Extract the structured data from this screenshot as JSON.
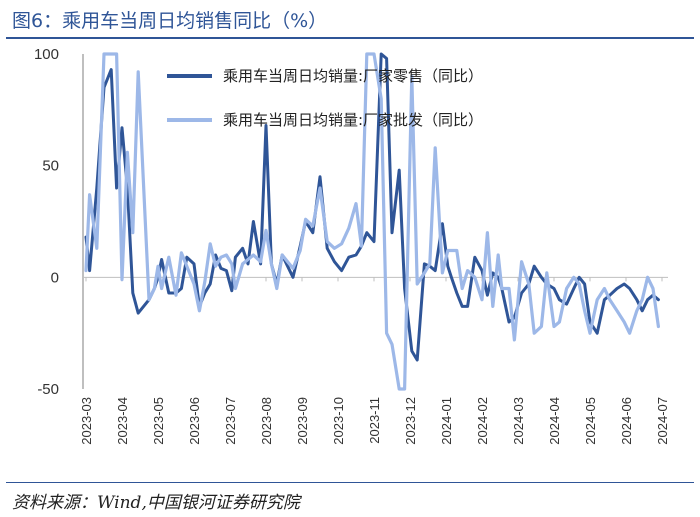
{
  "header": {
    "title": "图6：乘用车当周日均销售同比（%）"
  },
  "footer": {
    "source": "资料来源：Wind,中国银河证券研究院"
  },
  "chart_data": {
    "type": "line",
    "title": "图6：乘用车当周日均销售同比（%）",
    "xlabel": "",
    "ylabel": "",
    "ylim": [
      -50,
      100
    ],
    "yticks": [
      100,
      50,
      0,
      -50
    ],
    "xticks": [
      "2023-03",
      "2023-04",
      "2023-05",
      "2023-06",
      "2023-07",
      "2023-08",
      "2023-09",
      "2023-10",
      "2023-11",
      "2023-12",
      "2024-01",
      "2024-02",
      "2024-03",
      "2024-04",
      "2024-05",
      "2024-06",
      "2024-07"
    ],
    "grid": false,
    "legend": "top-left",
    "series": [
      {
        "name": "乘用车当周日均销量:厂家零售（同比）",
        "color": "#2f5597",
        "x": [
          0,
          0.1,
          0.3,
          0.5,
          0.7,
          0.85,
          1.0,
          1.15,
          1.3,
          1.45,
          1.75,
          1.9,
          2.0,
          2.1,
          2.3,
          2.5,
          2.65,
          2.8,
          3.0,
          3.15,
          3.3,
          3.45,
          3.6,
          3.75,
          3.9,
          4.05,
          4.15,
          4.35,
          4.5,
          4.65,
          4.85,
          5.0,
          5.15,
          5.3,
          5.45,
          5.6,
          5.75,
          5.95,
          6.1,
          6.3,
          6.5,
          6.7,
          6.9,
          7.1,
          7.3,
          7.5,
          7.65,
          7.8,
          8.0,
          8.2,
          8.35,
          8.5,
          8.7,
          8.85,
          9.05,
          9.2,
          9.4,
          9.55,
          9.7,
          9.9,
          10.05,
          10.15,
          10.3,
          10.45,
          10.6,
          10.8,
          11.0,
          11.15,
          11.3,
          11.45,
          11.55,
          11.75,
          11.9,
          12.1,
          12.3,
          12.45,
          12.65,
          12.8,
          13.0,
          13.15,
          13.35,
          13.55,
          13.7,
          13.85,
          14.0,
          14.2,
          14.4,
          14.55,
          14.75,
          14.95,
          15.1,
          15.3,
          15.45,
          15.6,
          15.75,
          15.9
        ],
        "y": [
          18,
          3,
          40,
          85,
          93,
          40,
          67,
          40,
          -7,
          -16,
          -10,
          -5,
          0,
          8,
          -7,
          -7,
          -5,
          9,
          6,
          -13,
          -7,
          -3,
          10,
          4,
          3,
          -6,
          9,
          13,
          6,
          25,
          6,
          68,
          6,
          -3,
          10,
          5,
          0,
          14,
          25,
          20,
          45,
          13,
          7,
          3,
          9,
          10,
          14,
          20,
          16,
          100,
          98,
          20,
          48,
          -5,
          -33,
          -37,
          6,
          5,
          3,
          24,
          5,
          0,
          -7,
          -13,
          -13,
          9,
          3,
          -8,
          2,
          0,
          -5,
          -20,
          -18,
          -7,
          -3,
          5,
          0,
          -3,
          -5,
          -10,
          -12,
          -5,
          0,
          -3,
          -20,
          -25,
          -10,
          -8,
          -5,
          -3,
          -5,
          -10,
          -15,
          -10,
          -8,
          -10
        ],
        "note_x": "x in month index units (0 = 2023-03 tick)"
      },
      {
        "name": "乘用车当周日均销量:厂家批发（同比）",
        "color": "#9db8e8",
        "x": [
          0,
          0.1,
          0.3,
          0.5,
          0.7,
          0.85,
          1.0,
          1.15,
          1.3,
          1.45,
          1.75,
          1.9,
          2.0,
          2.1,
          2.3,
          2.5,
          2.65,
          2.8,
          3.0,
          3.15,
          3.3,
          3.45,
          3.6,
          3.75,
          3.9,
          4.05,
          4.15,
          4.35,
          4.5,
          4.65,
          4.85,
          5.0,
          5.15,
          5.3,
          5.45,
          5.6,
          5.75,
          5.95,
          6.1,
          6.3,
          6.5,
          6.7,
          6.9,
          7.1,
          7.3,
          7.5,
          7.65,
          7.8,
          8.0,
          8.2,
          8.35,
          8.5,
          8.7,
          8.85,
          9.05,
          9.2,
          9.4,
          9.55,
          9.7,
          9.9,
          10.05,
          10.15,
          10.3,
          10.45,
          10.6,
          10.8,
          11.0,
          11.15,
          11.3,
          11.45,
          11.55,
          11.75,
          11.9,
          12.1,
          12.3,
          12.45,
          12.65,
          12.8,
          13.0,
          13.15,
          13.35,
          13.55,
          13.7,
          13.85,
          14.0,
          14.2,
          14.4,
          14.55,
          14.75,
          14.95,
          15.1,
          15.3,
          15.45,
          15.6,
          15.75,
          15.9
        ],
        "y": [
          3,
          37,
          13,
          100,
          100,
          100,
          -1,
          56,
          20,
          92,
          -10,
          -5,
          5,
          -5,
          9,
          -8,
          11,
          5,
          -3,
          -15,
          -2,
          15,
          5,
          9,
          10,
          6,
          -5,
          6,
          8,
          10,
          7,
          21,
          6,
          -5,
          10,
          7,
          4,
          12,
          26,
          23,
          40,
          16,
          13,
          15,
          22,
          33,
          14,
          100,
          100,
          80,
          -25,
          -30,
          -50,
          -50,
          90,
          -3,
          2,
          6,
          58,
          2,
          12,
          12,
          12,
          -5,
          3,
          0,
          -10,
          20,
          -13,
          10,
          -5,
          -5,
          -28,
          7,
          -3,
          -25,
          -22,
          2,
          -22,
          -20,
          -5,
          0,
          -3,
          -15,
          -25,
          -10,
          -5,
          -10,
          -15,
          -20,
          -25,
          -15,
          -10,
          0,
          -5,
          -22
        ],
        "note_x": "x in month index units (0 = 2023-03 tick)"
      }
    ]
  }
}
